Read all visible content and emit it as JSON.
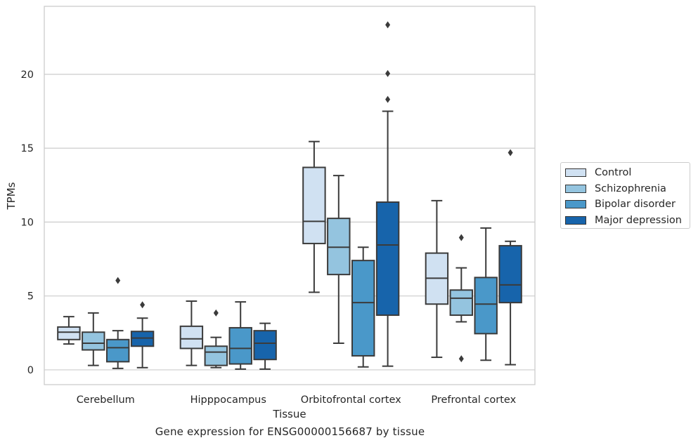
{
  "chart_data": {
    "type": "box",
    "title": "",
    "caption": "Gene expression for ENSG00000156687 by tissue",
    "xlabel": "Tissue",
    "ylabel": "TPMs",
    "ylim": [
      -1,
      24.6
    ],
    "yticks": [
      0,
      5,
      10,
      15,
      20
    ],
    "grid": "horizontal",
    "legend_position": "right",
    "categories": [
      "Cerebellum",
      "Hipppocampus",
      "Orbitofrontal cortex",
      "Prefrontal cortex"
    ],
    "series": [
      {
        "name": "Control",
        "color": "#d0e1f2",
        "boxes": [
          {
            "whislo": 1.75,
            "q1": 2.05,
            "med": 2.55,
            "q3": 2.9,
            "whishi": 3.6,
            "fliers": []
          },
          {
            "whislo": 0.3,
            "q1": 1.45,
            "med": 2.1,
            "q3": 2.95,
            "whishi": 4.65,
            "fliers": []
          },
          {
            "whislo": 5.25,
            "q1": 8.55,
            "med": 10.05,
            "q3": 13.7,
            "whishi": 15.45,
            "fliers": []
          },
          {
            "whislo": 0.85,
            "q1": 4.45,
            "med": 6.2,
            "q3": 7.9,
            "whishi": 11.45,
            "fliers": []
          }
        ]
      },
      {
        "name": "Schizophrenia",
        "color": "#94c4df",
        "boxes": [
          {
            "whislo": 0.3,
            "q1": 1.35,
            "med": 1.8,
            "q3": 2.55,
            "whishi": 3.85,
            "fliers": []
          },
          {
            "whislo": 0.15,
            "q1": 0.3,
            "med": 1.2,
            "q3": 1.6,
            "whishi": 2.2,
            "fliers": [
              3.85
            ]
          },
          {
            "whislo": 1.8,
            "q1": 6.45,
            "med": 8.3,
            "q3": 10.25,
            "whishi": 13.15,
            "fliers": []
          },
          {
            "whislo": 3.25,
            "q1": 3.7,
            "med": 4.85,
            "q3": 5.4,
            "whishi": 6.9,
            "fliers": [
              0.75,
              8.95
            ]
          }
        ]
      },
      {
        "name": "Bipolar disorder",
        "color": "#4a98c9",
        "boxes": [
          {
            "whislo": 0.1,
            "q1": 0.55,
            "med": 1.5,
            "q3": 2.05,
            "whishi": 2.65,
            "fliers": [
              6.05
            ]
          },
          {
            "whislo": 0.05,
            "q1": 0.4,
            "med": 1.45,
            "q3": 2.85,
            "whishi": 4.6,
            "fliers": []
          },
          {
            "whislo": 0.2,
            "q1": 0.95,
            "med": 4.55,
            "q3": 7.4,
            "whishi": 8.3,
            "fliers": []
          },
          {
            "whislo": 0.65,
            "q1": 2.45,
            "med": 4.45,
            "q3": 6.25,
            "whishi": 9.6,
            "fliers": []
          }
        ]
      },
      {
        "name": "Major depression",
        "color": "#1764ab",
        "boxes": [
          {
            "whislo": 0.15,
            "q1": 1.6,
            "med": 2.15,
            "q3": 2.6,
            "whishi": 3.5,
            "fliers": [
              4.4
            ]
          },
          {
            "whislo": 0.05,
            "q1": 0.7,
            "med": 1.8,
            "q3": 2.65,
            "whishi": 3.15,
            "fliers": []
          },
          {
            "whislo": 0.25,
            "q1": 3.7,
            "med": 8.45,
            "q3": 11.35,
            "whishi": 17.5,
            "fliers": [
              18.3,
              20.05,
              23.35
            ]
          },
          {
            "whislo": 0.35,
            "q1": 4.55,
            "med": 5.75,
            "q3": 8.4,
            "whishi": 8.7,
            "fliers": [
              14.7
            ]
          }
        ]
      }
    ]
  }
}
